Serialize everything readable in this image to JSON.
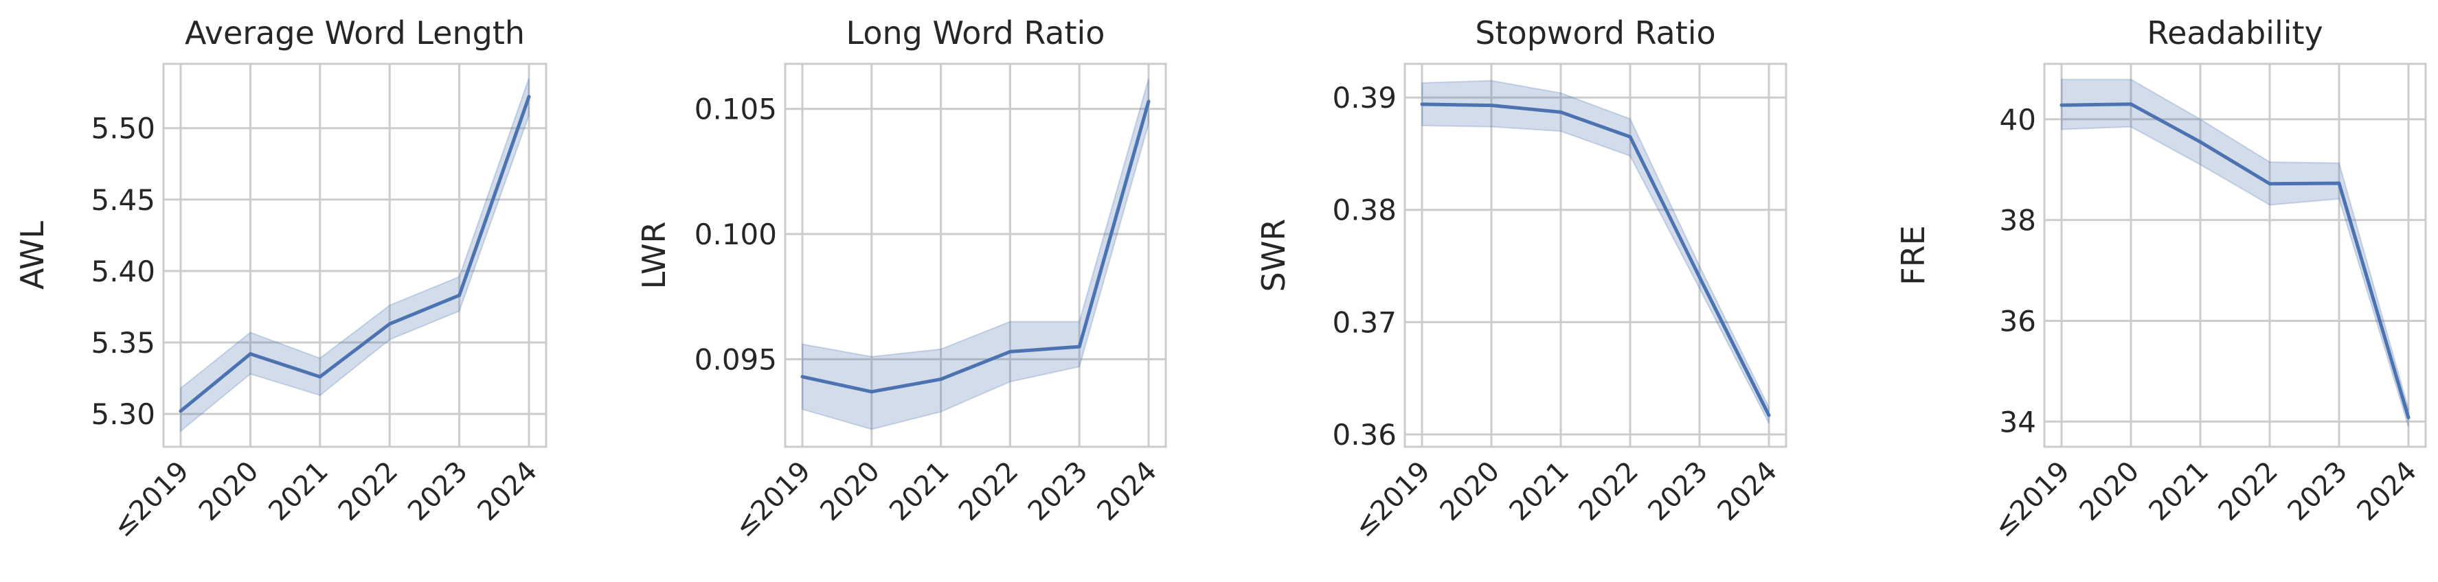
{
  "chart_data": [
    {
      "type": "line",
      "title": "Average Word Length",
      "xlabel": "",
      "ylabel": "AWL",
      "categories": [
        "≤2019",
        "2020",
        "2021",
        "2022",
        "2023",
        "2024"
      ],
      "series": [
        {
          "name": "AWL",
          "values": [
            5.302,
            5.342,
            5.326,
            5.363,
            5.383,
            5.522
          ],
          "ci_lower": [
            5.288,
            5.328,
            5.313,
            5.352,
            5.372,
            5.509
          ],
          "ci_upper": [
            5.318,
            5.357,
            5.339,
            5.376,
            5.396,
            5.535
          ]
        }
      ],
      "ylim": [
        5.277,
        5.545
      ],
      "yticks": [
        5.3,
        5.35,
        5.4,
        5.45,
        5.5
      ],
      "ytick_labels": [
        "5.30",
        "5.35",
        "5.40",
        "5.45",
        "5.50"
      ],
      "grid": true,
      "color": "#4c72b0"
    },
    {
      "type": "line",
      "title": "Long Word Ratio",
      "xlabel": "",
      "ylabel": "LWR",
      "categories": [
        "≤2019",
        "2020",
        "2021",
        "2022",
        "2023",
        "2024"
      ],
      "series": [
        {
          "name": "LWR",
          "values": [
            0.0943,
            0.0937,
            0.0942,
            0.0953,
            0.0955,
            0.1053
          ],
          "ci_lower": [
            0.093,
            0.0922,
            0.0929,
            0.0941,
            0.0947,
            0.1044
          ],
          "ci_upper": [
            0.0956,
            0.0951,
            0.0954,
            0.0965,
            0.0965,
            0.1062
          ]
        }
      ],
      "ylim": [
        0.0915,
        0.1068
      ],
      "yticks": [
        0.095,
        0.1,
        0.105
      ],
      "ytick_labels": [
        "0.095",
        "0.100",
        "0.105"
      ],
      "grid": true,
      "color": "#4c72b0"
    },
    {
      "type": "line",
      "title": "Stopword Ratio",
      "xlabel": "",
      "ylabel": "SWR",
      "categories": [
        "≤2019",
        "2020",
        "2021",
        "2022",
        "2023",
        "2024"
      ],
      "series": [
        {
          "name": "SWR",
          "values": [
            0.3894,
            0.3893,
            0.3887,
            0.3865,
            0.374,
            0.3617
          ],
          "ci_lower": [
            0.3875,
            0.3874,
            0.387,
            0.3848,
            0.373,
            0.361
          ],
          "ci_upper": [
            0.3913,
            0.3915,
            0.3904,
            0.3881,
            0.375,
            0.3624
          ]
        }
      ],
      "ylim": [
        0.3589,
        0.393
      ],
      "yticks": [
        0.36,
        0.37,
        0.38,
        0.39
      ],
      "ytick_labels": [
        "0.36",
        "0.37",
        "0.38",
        "0.39"
      ],
      "grid": true,
      "color": "#4c72b0"
    },
    {
      "type": "line",
      "title": "Readability",
      "xlabel": "",
      "ylabel": "FRE",
      "categories": [
        "≤2019",
        "2020",
        "2021",
        "2022",
        "2023",
        "2024"
      ],
      "series": [
        {
          "name": "FRE",
          "values": [
            40.28,
            40.3,
            39.55,
            38.72,
            38.73,
            34.08
          ],
          "ci_lower": [
            39.8,
            39.85,
            39.1,
            38.3,
            38.42,
            33.9
          ],
          "ci_upper": [
            40.79,
            40.79,
            40.0,
            39.15,
            39.13,
            34.25
          ]
        }
      ],
      "ylim": [
        33.5,
        41.1
      ],
      "yticks": [
        34,
        36,
        38,
        40
      ],
      "ytick_labels": [
        "34",
        "36",
        "38",
        "40"
      ],
      "grid": true,
      "color": "#4c72b0"
    }
  ]
}
